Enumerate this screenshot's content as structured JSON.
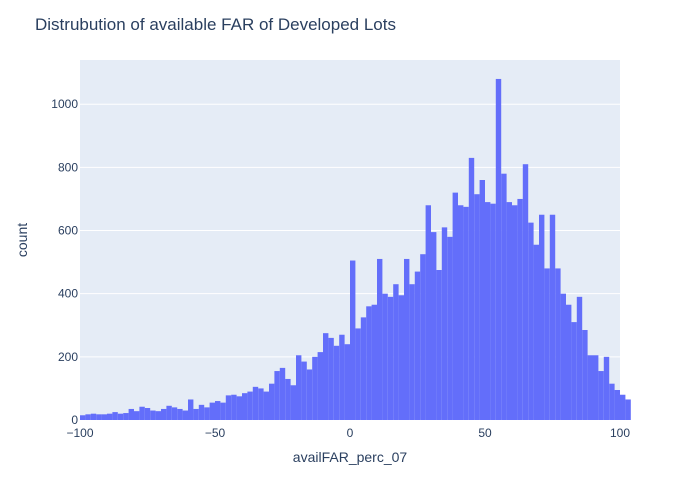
{
  "chart_data": {
    "type": "bar",
    "title": "Distrubution of available FAR of Developed Lots",
    "xlabel": "availFAR_perc_07",
    "ylabel": "count",
    "xlim": [
      -100,
      100
    ],
    "ylim": [
      0,
      1140
    ],
    "bin_width": 2,
    "bin_start": -100,
    "x_ticks": [
      -100,
      -50,
      0,
      50,
      100
    ],
    "x_tick_labels": [
      "−100",
      "−50",
      "0",
      "50",
      "100"
    ],
    "y_ticks": [
      0,
      200,
      400,
      600,
      800,
      1000
    ],
    "y_tick_labels": [
      "0",
      "200",
      "400",
      "600",
      "800",
      "1000"
    ],
    "grid": true,
    "bar_color": "#636efa",
    "plot_bg": "#e5ecf6",
    "values": [
      15,
      18,
      20,
      18,
      18,
      20,
      25,
      20,
      22,
      35,
      28,
      42,
      38,
      30,
      28,
      35,
      45,
      40,
      35,
      30,
      65,
      35,
      48,
      40,
      55,
      60,
      55,
      78,
      80,
      75,
      85,
      90,
      105,
      100,
      90,
      115,
      155,
      165,
      130,
      110,
      205,
      185,
      160,
      200,
      215,
      275,
      260,
      235,
      270,
      240,
      505,
      290,
      325,
      360,
      365,
      510,
      400,
      390,
      430,
      395,
      510,
      430,
      470,
      525,
      680,
      595,
      475,
      610,
      580,
      720,
      680,
      675,
      830,
      715,
      760,
      690,
      685,
      1080,
      780,
      690,
      680,
      700,
      810,
      625,
      555,
      650,
      480,
      650,
      480,
      400,
      365,
      310,
      390,
      285,
      205,
      205,
      155,
      200,
      115,
      95,
      80,
      65
    ]
  }
}
